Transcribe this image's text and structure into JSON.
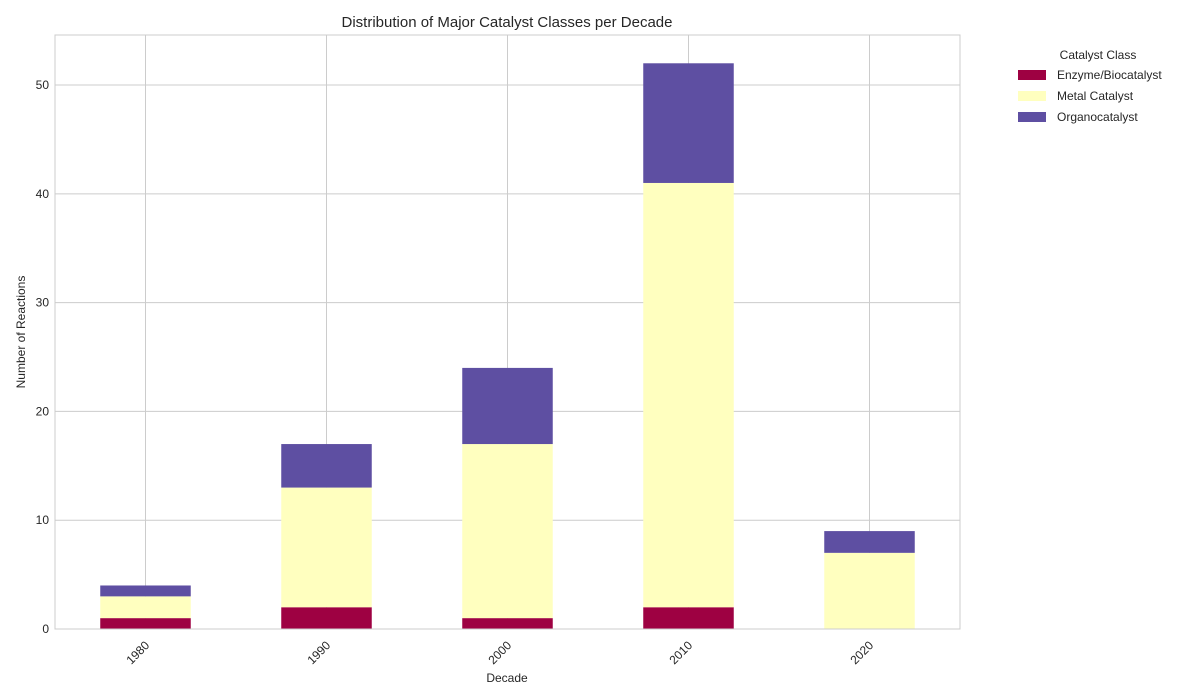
{
  "chart_data": {
    "type": "bar",
    "stacked": true,
    "title": "Distribution of Major Catalyst Classes per Decade",
    "xlabel": "Decade",
    "ylabel": "Number of Reactions",
    "categories": [
      "1980",
      "1990",
      "2000",
      "2010",
      "2020"
    ],
    "series": [
      {
        "name": "Enzyme/Biocatalyst",
        "color": "#9e0142",
        "values": [
          1,
          2,
          1,
          2,
          0
        ]
      },
      {
        "name": "Metal Catalyst",
        "color": "#ffffbf",
        "values": [
          2,
          11,
          16,
          39,
          7
        ]
      },
      {
        "name": "Organocatalyst",
        "color": "#5e4fa2",
        "values": [
          1,
          4,
          7,
          11,
          2
        ]
      }
    ],
    "ylim": [
      0,
      54.6
    ],
    "yticks": [
      0,
      10,
      20,
      30,
      40,
      50
    ],
    "grid": true,
    "legend": {
      "title": "Catalyst Class",
      "position": "outside-top-right"
    }
  }
}
